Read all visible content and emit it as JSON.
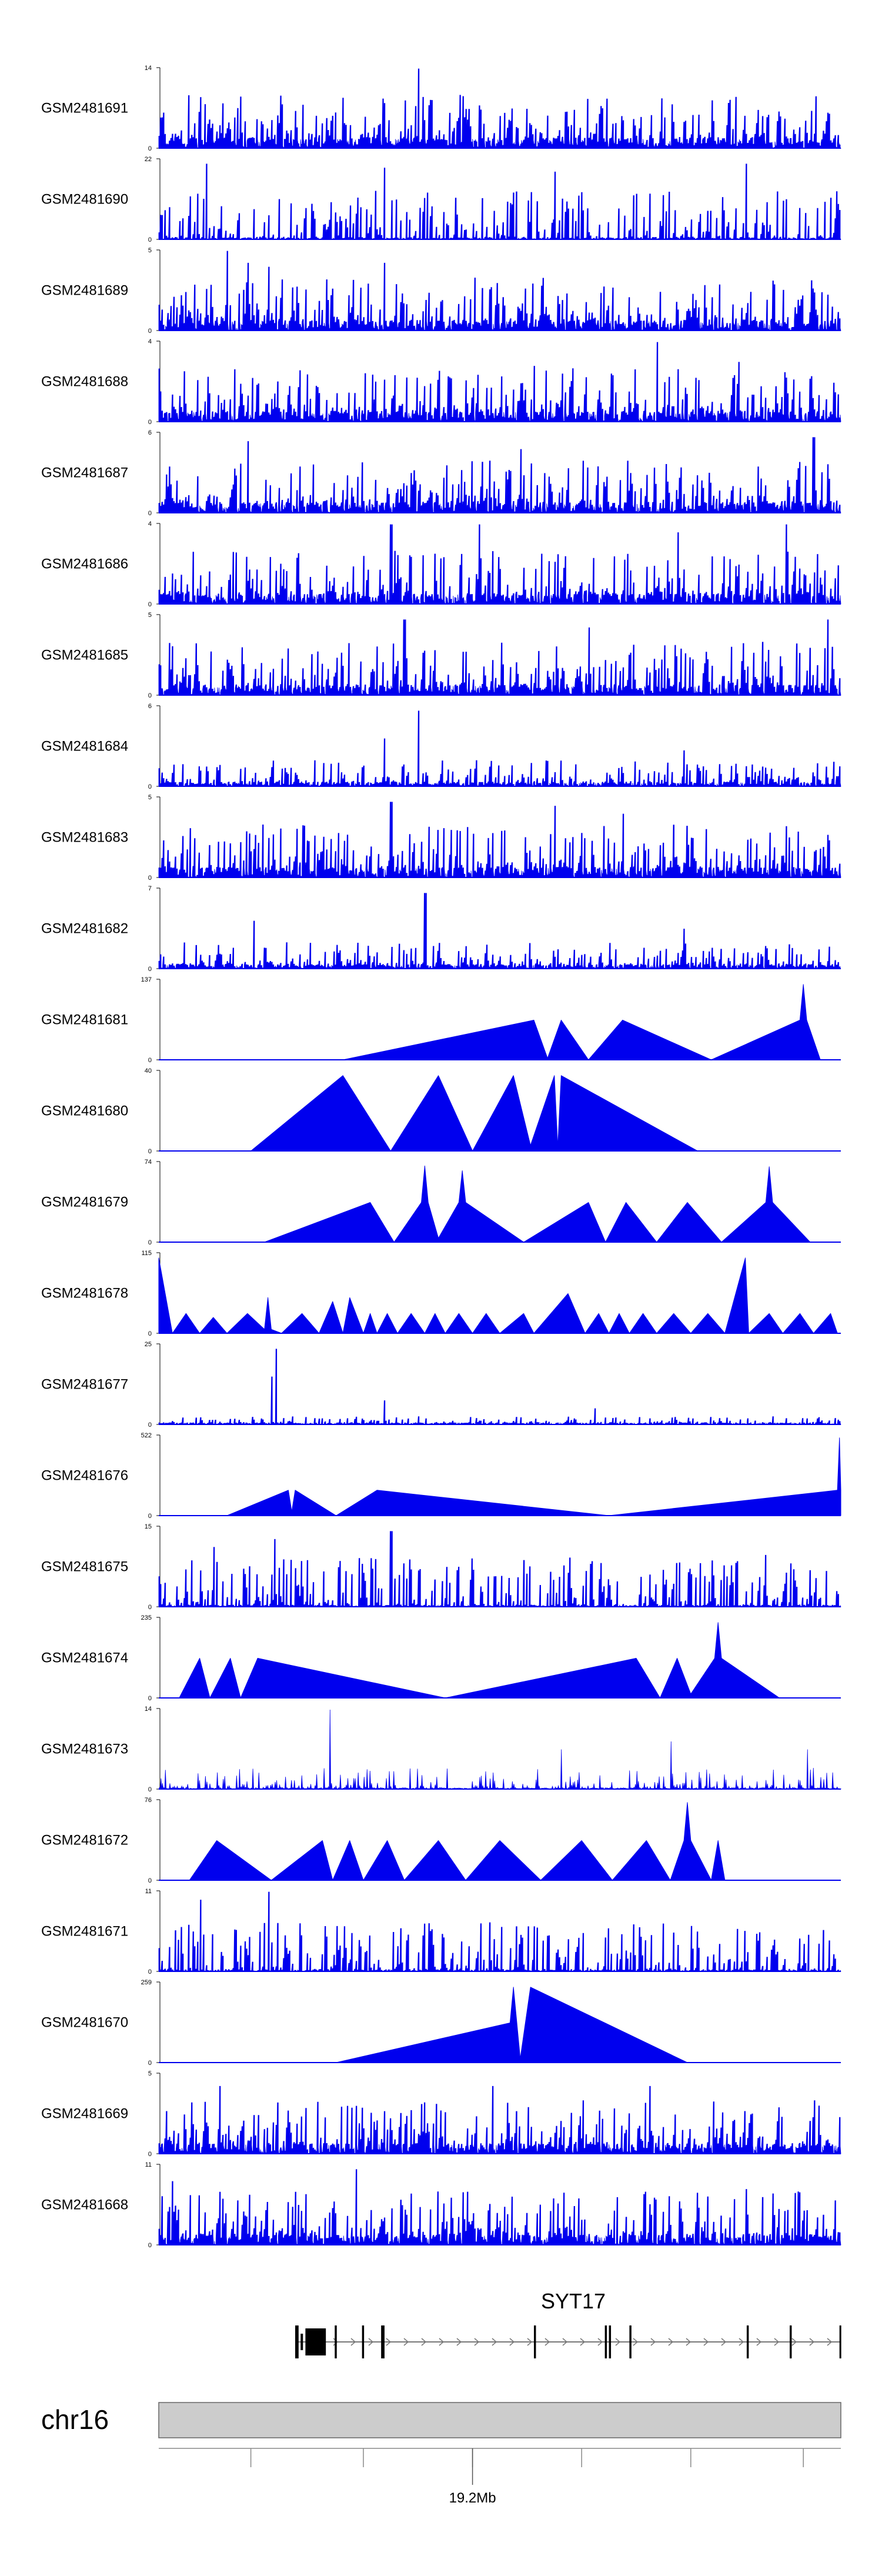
{
  "chart_data": {
    "type": "area",
    "title": "",
    "description_mode": "genome-browser coverage tracks",
    "color": "#0000ee",
    "tracks": [
      {
        "name": "GSM2481691",
        "ymax": 14,
        "ymin": 0,
        "style": "dense",
        "seed": 11,
        "peaks": [
          [
            0.18,
            0.55
          ],
          [
            0.38,
            1.0
          ],
          [
            0.65,
            0.5
          ],
          [
            0.81,
            0.6
          ]
        ]
      },
      {
        "name": "GSM2481690",
        "ymax": 22,
        "ymin": 0,
        "style": "dense-tri",
        "seed": 23,
        "peaks": [
          [
            0.07,
            0.95
          ],
          [
            0.33,
            0.9
          ],
          [
            0.58,
            0.85
          ],
          [
            0.86,
            0.95
          ]
        ]
      },
      {
        "name": "GSM2481689",
        "ymax": 5,
        "ymin": 0,
        "style": "dense",
        "seed": 37,
        "peaks": [
          [
            0.1,
            1.0
          ],
          [
            0.13,
            0.85
          ],
          [
            0.16,
            0.8
          ],
          [
            0.33,
            0.85
          ]
        ]
      },
      {
        "name": "GSM2481688",
        "ymax": 4,
        "ymin": 0,
        "style": "dense",
        "seed": 41,
        "peaks": [
          [
            0.73,
            1.0
          ],
          [
            0.85,
            0.75
          ],
          [
            0.55,
            0.7
          ]
        ]
      },
      {
        "name": "GSM2481687",
        "ymax": 6,
        "ymin": 0,
        "style": "dense",
        "seed": 53,
        "peaks": [
          [
            0.13,
            0.9
          ],
          [
            0.53,
            0.8
          ],
          [
            0.96,
            0.95
          ]
        ]
      },
      {
        "name": "GSM2481686",
        "ymax": 4,
        "ymin": 0,
        "style": "dense",
        "seed": 67,
        "peaks": [
          [
            0.34,
            1.0
          ],
          [
            0.47,
            1.0
          ],
          [
            0.76,
            0.9
          ],
          [
            0.92,
            1.0
          ]
        ]
      },
      {
        "name": "GSM2481685",
        "ymax": 5,
        "ymin": 0,
        "style": "dense",
        "seed": 71,
        "peaks": [
          [
            0.36,
            0.95
          ],
          [
            0.98,
            0.95
          ],
          [
            0.63,
            0.85
          ]
        ]
      },
      {
        "name": "GSM2481684",
        "ymax": 6,
        "ymin": 0,
        "style": "sparse",
        "seed": 83,
        "peaks": [
          [
            0.38,
            0.95
          ],
          [
            0.33,
            0.6
          ],
          [
            0.77,
            0.45
          ]
        ]
      },
      {
        "name": "GSM2481683",
        "ymax": 5,
        "ymin": 0,
        "style": "dense",
        "seed": 97,
        "peaks": [
          [
            0.34,
            0.95
          ],
          [
            0.58,
            0.9
          ],
          [
            0.68,
            0.8
          ]
        ]
      },
      {
        "name": "GSM2481682",
        "ymax": 7,
        "ymin": 0,
        "style": "sparse",
        "seed": 101,
        "peaks": [
          [
            0.39,
            0.95
          ],
          [
            0.14,
            0.6
          ],
          [
            0.77,
            0.5
          ]
        ]
      },
      {
        "name": "GSM2481681",
        "ymax": 137,
        "ymin": 0,
        "style": "polygon",
        "points": [
          [
            0.27,
            0
          ],
          [
            0.55,
            0.5
          ],
          [
            0.57,
            0.02
          ],
          [
            0.59,
            0.5
          ],
          [
            0.63,
            0
          ],
          [
            0.68,
            0.5
          ],
          [
            0.81,
            0
          ],
          [
            0.94,
            0.5
          ],
          [
            0.945,
            0.95
          ],
          [
            0.95,
            0.5
          ],
          [
            0.97,
            0
          ]
        ]
      },
      {
        "name": "GSM2481680",
        "ymax": 40,
        "ymin": 0,
        "style": "polygon",
        "points": [
          [
            0.135,
            0
          ],
          [
            0.27,
            0.95
          ],
          [
            0.34,
            0
          ],
          [
            0.41,
            0.95
          ],
          [
            0.46,
            0
          ],
          [
            0.52,
            0.95
          ],
          [
            0.545,
            0.07
          ],
          [
            0.58,
            0.95
          ],
          [
            0.585,
            0.05
          ],
          [
            0.59,
            0.95
          ],
          [
            0.79,
            0
          ]
        ]
      },
      {
        "name": "GSM2481679",
        "ymax": 74,
        "ymin": 0,
        "style": "polygon",
        "points": [
          [
            0.155,
            0
          ],
          [
            0.31,
            0.5
          ],
          [
            0.345,
            0
          ],
          [
            0.385,
            0.5
          ],
          [
            0.39,
            0.96
          ],
          [
            0.395,
            0.5
          ],
          [
            0.41,
            0.05
          ],
          [
            0.44,
            0.5
          ],
          [
            0.445,
            0.9
          ],
          [
            0.45,
            0.5
          ],
          [
            0.535,
            0
          ],
          [
            0.63,
            0.5
          ],
          [
            0.655,
            0
          ],
          [
            0.685,
            0.5
          ],
          [
            0.73,
            0
          ],
          [
            0.775,
            0.5
          ],
          [
            0.825,
            0
          ],
          [
            0.89,
            0.5
          ],
          [
            0.895,
            0.95
          ],
          [
            0.9,
            0.5
          ],
          [
            0.955,
            0
          ]
        ]
      },
      {
        "name": "GSM2481678",
        "ymax": 115,
        "ymin": 0,
        "style": "polygon-multi",
        "points": [
          [
            0.0,
            0.95
          ],
          [
            0.02,
            0
          ],
          [
            0.04,
            0.25
          ],
          [
            0.06,
            0
          ],
          [
            0.08,
            0.2
          ],
          [
            0.1,
            0
          ],
          [
            0.13,
            0.25
          ],
          [
            0.155,
            0.05
          ],
          [
            0.16,
            0.45
          ],
          [
            0.165,
            0.05
          ],
          [
            0.18,
            0
          ],
          [
            0.21,
            0.25
          ],
          [
            0.235,
            0
          ],
          [
            0.255,
            0.4
          ],
          [
            0.27,
            0
          ],
          [
            0.28,
            0.45
          ],
          [
            0.3,
            0
          ],
          [
            0.31,
            0.25
          ],
          [
            0.32,
            0
          ],
          [
            0.335,
            0.25
          ],
          [
            0.35,
            0
          ],
          [
            0.37,
            0.25
          ],
          [
            0.39,
            0
          ],
          [
            0.405,
            0.25
          ],
          [
            0.42,
            0
          ],
          [
            0.44,
            0.25
          ],
          [
            0.46,
            0
          ],
          [
            0.48,
            0.25
          ],
          [
            0.5,
            0
          ],
          [
            0.535,
            0.25
          ],
          [
            0.55,
            0
          ],
          [
            0.6,
            0.5
          ],
          [
            0.625,
            0
          ],
          [
            0.645,
            0.25
          ],
          [
            0.66,
            0
          ],
          [
            0.675,
            0.25
          ],
          [
            0.69,
            0
          ],
          [
            0.71,
            0.25
          ],
          [
            0.73,
            0
          ],
          [
            0.755,
            0.25
          ],
          [
            0.78,
            0
          ],
          [
            0.805,
            0.25
          ],
          [
            0.83,
            0
          ],
          [
            0.86,
            0.95
          ],
          [
            0.865,
            0
          ],
          [
            0.895,
            0.25
          ],
          [
            0.915,
            0
          ],
          [
            0.94,
            0.25
          ],
          [
            0.96,
            0
          ],
          [
            0.985,
            0.25
          ],
          [
            0.995,
            0
          ]
        ]
      },
      {
        "name": "GSM2481677",
        "ymax": 25,
        "ymin": 0,
        "style": "flat",
        "seed": 131,
        "peaks": [
          [
            0.165,
            0.6
          ],
          [
            0.172,
            0.95
          ],
          [
            0.33,
            0.3
          ],
          [
            0.64,
            0.2
          ]
        ]
      },
      {
        "name": "GSM2481676",
        "ymax": 522,
        "ymin": 0,
        "style": "polygon",
        "points": [
          [
            0.1,
            0
          ],
          [
            0.19,
            0.32
          ],
          [
            0.195,
            0.05
          ],
          [
            0.2,
            0.32
          ],
          [
            0.26,
            0
          ],
          [
            0.32,
            0.32
          ],
          [
            0.66,
            0
          ],
          [
            0.995,
            0.32
          ],
          [
            0.998,
            0.98
          ],
          [
            1.0,
            0.32
          ],
          [
            1.0,
            0
          ]
        ]
      },
      {
        "name": "GSM2481675",
        "ymax": 15,
        "ymin": 0,
        "style": "dense-tri",
        "seed": 149,
        "peaks": [
          [
            0.34,
            0.95
          ],
          [
            0.17,
            0.85
          ],
          [
            0.08,
            0.75
          ],
          [
            0.89,
            0.65
          ]
        ]
      },
      {
        "name": "GSM2481674",
        "ymax": 235,
        "ymin": 0,
        "style": "polygon",
        "points": [
          [
            0.03,
            0
          ],
          [
            0.06,
            0.5
          ],
          [
            0.075,
            0
          ],
          [
            0.105,
            0.5
          ],
          [
            0.12,
            0
          ],
          [
            0.145,
            0.5
          ],
          [
            0.42,
            0
          ],
          [
            0.7,
            0.5
          ],
          [
            0.735,
            0
          ],
          [
            0.76,
            0.5
          ],
          [
            0.78,
            0.05
          ],
          [
            0.815,
            0.5
          ],
          [
            0.82,
            0.95
          ],
          [
            0.825,
            0.5
          ],
          [
            0.91,
            0
          ]
        ]
      },
      {
        "name": "GSM2481673",
        "ymax": 14,
        "ymin": 0,
        "style": "dense-tri-low",
        "seed": 163,
        "peaks": [
          [
            0.25,
            1.0
          ],
          [
            0.75,
            0.6
          ],
          [
            0.59,
            0.5
          ],
          [
            0.95,
            0.5
          ]
        ]
      },
      {
        "name": "GSM2481672",
        "ymax": 76,
        "ymin": 0,
        "style": "polygon",
        "points": [
          [
            0.045,
            0
          ],
          [
            0.085,
            0.5
          ],
          [
            0.165,
            0
          ],
          [
            0.24,
            0.5
          ],
          [
            0.255,
            0
          ],
          [
            0.28,
            0.5
          ],
          [
            0.3,
            0
          ],
          [
            0.335,
            0.5
          ],
          [
            0.36,
            0
          ],
          [
            0.41,
            0.5
          ],
          [
            0.45,
            0
          ],
          [
            0.5,
            0.5
          ],
          [
            0.56,
            0
          ],
          [
            0.62,
            0.5
          ],
          [
            0.665,
            0
          ],
          [
            0.715,
            0.5
          ],
          [
            0.75,
            0
          ],
          [
            0.77,
            0.5
          ],
          [
            0.775,
            0.98
          ],
          [
            0.78,
            0.5
          ],
          [
            0.81,
            0
          ],
          [
            0.82,
            0.5
          ],
          [
            0.83,
            0
          ],
          [
            0.91,
            0
          ]
        ]
      },
      {
        "name": "GSM2481671",
        "ymax": 11,
        "ymin": 0,
        "style": "dense-tri",
        "seed": 181,
        "peaks": [
          [
            0.16,
            1.0
          ],
          [
            0.06,
            0.9
          ],
          [
            0.74,
            0.6
          ]
        ]
      },
      {
        "name": "GSM2481670",
        "ymax": 259,
        "ymin": 0,
        "style": "polygon",
        "points": [
          [
            0.26,
            0
          ],
          [
            0.515,
            0.5
          ],
          [
            0.52,
            0.95
          ],
          [
            0.53,
            0.05
          ],
          [
            0.545,
            0.95
          ],
          [
            0.775,
            0
          ]
        ]
      },
      {
        "name": "GSM2481669",
        "ymax": 5,
        "ymin": 0,
        "style": "dense",
        "seed": 197,
        "peaks": [
          [
            0.09,
            0.85
          ],
          [
            0.49,
            0.85
          ],
          [
            0.72,
            0.85
          ]
        ]
      },
      {
        "name": "GSM2481668",
        "ymax": 11,
        "ymin": 0,
        "style": "dense",
        "seed": 211,
        "peaks": [
          [
            0.29,
            0.95
          ],
          [
            0.02,
            0.8
          ],
          [
            0.86,
            0.7
          ]
        ]
      }
    ],
    "gene": {
      "name": "SYT17",
      "strand": "+",
      "span": [
        0.2,
        1.0
      ],
      "exons": [
        [
          0.2,
          0.205,
          "tall"
        ],
        [
          0.215,
          0.245,
          "box"
        ],
        [
          0.258,
          0.261,
          "tall"
        ],
        [
          0.298,
          0.301,
          "tall"
        ],
        [
          0.326,
          0.331,
          "tall"
        ],
        [
          0.55,
          0.553,
          "tall"
        ],
        [
          0.654,
          0.657,
          "tall"
        ],
        [
          0.66,
          0.663,
          "tall"
        ],
        [
          0.69,
          0.693,
          "tall"
        ],
        [
          0.862,
          0.865,
          "tall"
        ],
        [
          0.925,
          0.928,
          "tall"
        ],
        [
          0.998,
          1.0,
          "tall"
        ]
      ]
    },
    "chromosome": {
      "name": "chr16",
      "ticks": [
        0.135,
        0.3,
        0.46,
        0.62,
        0.78,
        0.945
      ],
      "position_label": "19.2Mb",
      "position_at": 0.46
    }
  }
}
